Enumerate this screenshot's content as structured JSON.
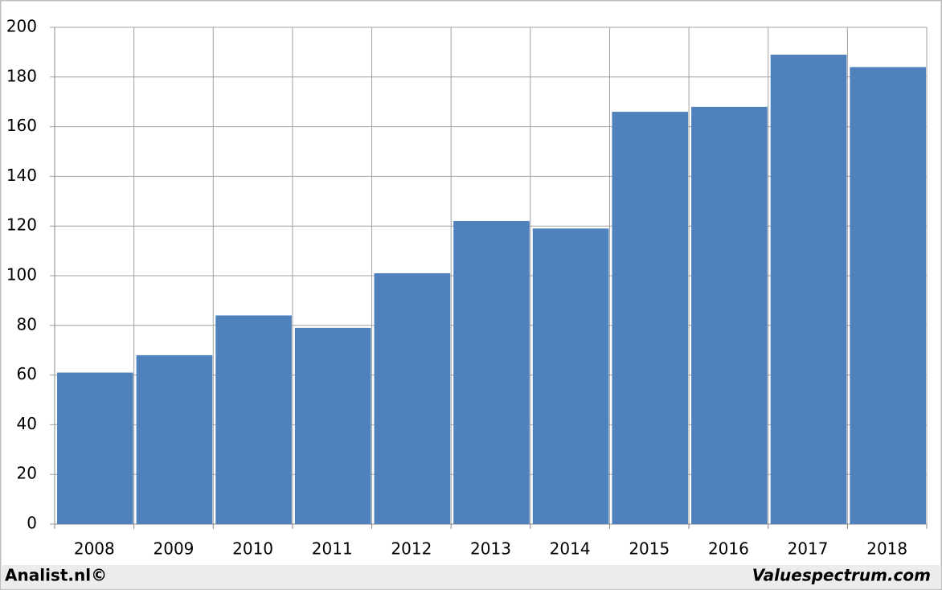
{
  "chart_data": {
    "type": "bar",
    "categories": [
      "2008",
      "2009",
      "2010",
      "2011",
      "2012",
      "2013",
      "2014",
      "2015",
      "2016",
      "2017",
      "2018"
    ],
    "values": [
      61,
      68,
      84,
      79,
      101,
      122,
      119,
      166,
      168,
      189,
      184
    ],
    "color": "#4f81bd",
    "ylim": [
      0,
      200
    ],
    "yticks": [
      0,
      20,
      40,
      60,
      80,
      100,
      120,
      140,
      160,
      180,
      200
    ],
    "grid": true,
    "credit_left": "Analist.nl©",
    "credit_right": "Valuespectrum.com"
  }
}
